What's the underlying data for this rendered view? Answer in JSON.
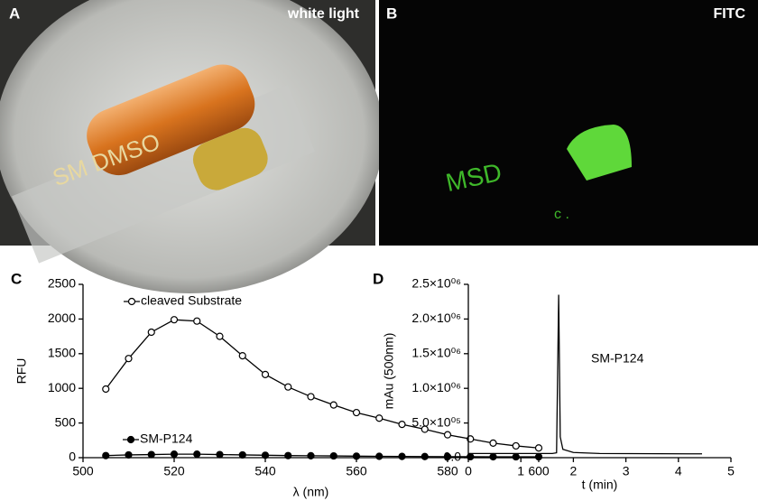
{
  "photos": [
    {
      "label": "A",
      "caption": "white light"
    },
    {
      "label": "B",
      "caption": "FITC"
    }
  ],
  "chart_data": [
    {
      "type": "line",
      "panel_label": "C",
      "xlabel": "λ (nm)",
      "ylabel": "RFU",
      "x": [
        505,
        510,
        515,
        520,
        525,
        530,
        535,
        540,
        545,
        550,
        555,
        560,
        565,
        570,
        575,
        580,
        585,
        590,
        595,
        600
      ],
      "series": [
        {
          "name": "cleaved Substrate",
          "color": "#000000",
          "marker": "open",
          "values": [
            990,
            1430,
            1810,
            1990,
            1970,
            1750,
            1470,
            1200,
            1020,
            880,
            760,
            650,
            570,
            480,
            410,
            330,
            270,
            210,
            170,
            140
          ]
        },
        {
          "name": "SM-P124",
          "color": "#000000",
          "marker": "filled",
          "values": [
            30,
            40,
            45,
            50,
            50,
            45,
            40,
            35,
            30,
            28,
            25,
            22,
            20,
            18,
            16,
            15,
            14,
            13,
            12,
            12
          ]
        }
      ],
      "xlim": [
        500,
        600
      ],
      "xticks": [
        500,
        520,
        540,
        560,
        580,
        600
      ],
      "ylim": [
        0,
        2500
      ],
      "yticks": [
        0,
        500,
        1000,
        1500,
        2000,
        2500
      ]
    },
    {
      "type": "line",
      "panel_label": "D",
      "xlabel": "t (min)",
      "ylabel": "mAu (500nm)",
      "x": [
        0,
        1.6,
        1.68,
        1.72,
        1.75,
        1.8,
        2,
        2.5,
        4.45
      ],
      "series": [
        {
          "name": "SM-P124",
          "color": "#000000",
          "values": [
            60000,
            60000,
            70000,
            2350000,
            300000,
            120000,
            75000,
            60000,
            55000
          ]
        }
      ],
      "xlim": [
        0,
        5
      ],
      "xticks": [
        0,
        1,
        2,
        3,
        4,
        5
      ],
      "ylim": [
        0,
        2500000
      ],
      "yticks": [
        {
          "value": 0,
          "label": "0.0"
        },
        {
          "value": 500000,
          "label": "5.0×10⁰⁵"
        },
        {
          "value": 1000000,
          "label": "1.0×10⁰⁶"
        },
        {
          "value": 1500000,
          "label": "1.5×10⁰⁶"
        },
        {
          "value": 2000000,
          "label": "2.0×10⁰⁶"
        },
        {
          "value": 2500000,
          "label": "2.5×10⁰⁶"
        }
      ]
    }
  ]
}
